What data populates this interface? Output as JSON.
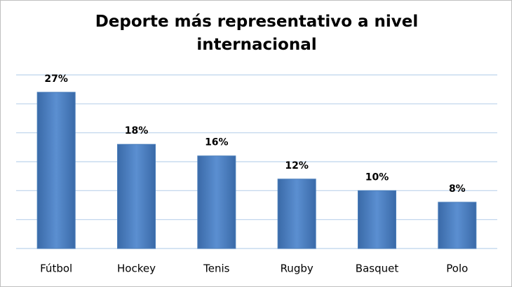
{
  "chart_data": {
    "type": "bar",
    "title": "Deporte más representativo a nivel internacional",
    "categories": [
      "Fútbol",
      "Hockey",
      "Tenis",
      "Rugby",
      "Basquet",
      "Polo"
    ],
    "values": [
      27,
      18,
      16,
      12,
      10,
      8
    ],
    "value_labels": [
      "27%",
      "18%",
      "16%",
      "12%",
      "10%",
      "8%"
    ],
    "color": "#4a7ebb",
    "ylim": [
      0,
      30
    ],
    "yticks": [
      0,
      5,
      10,
      15,
      20,
      25,
      30
    ],
    "grid": true
  }
}
